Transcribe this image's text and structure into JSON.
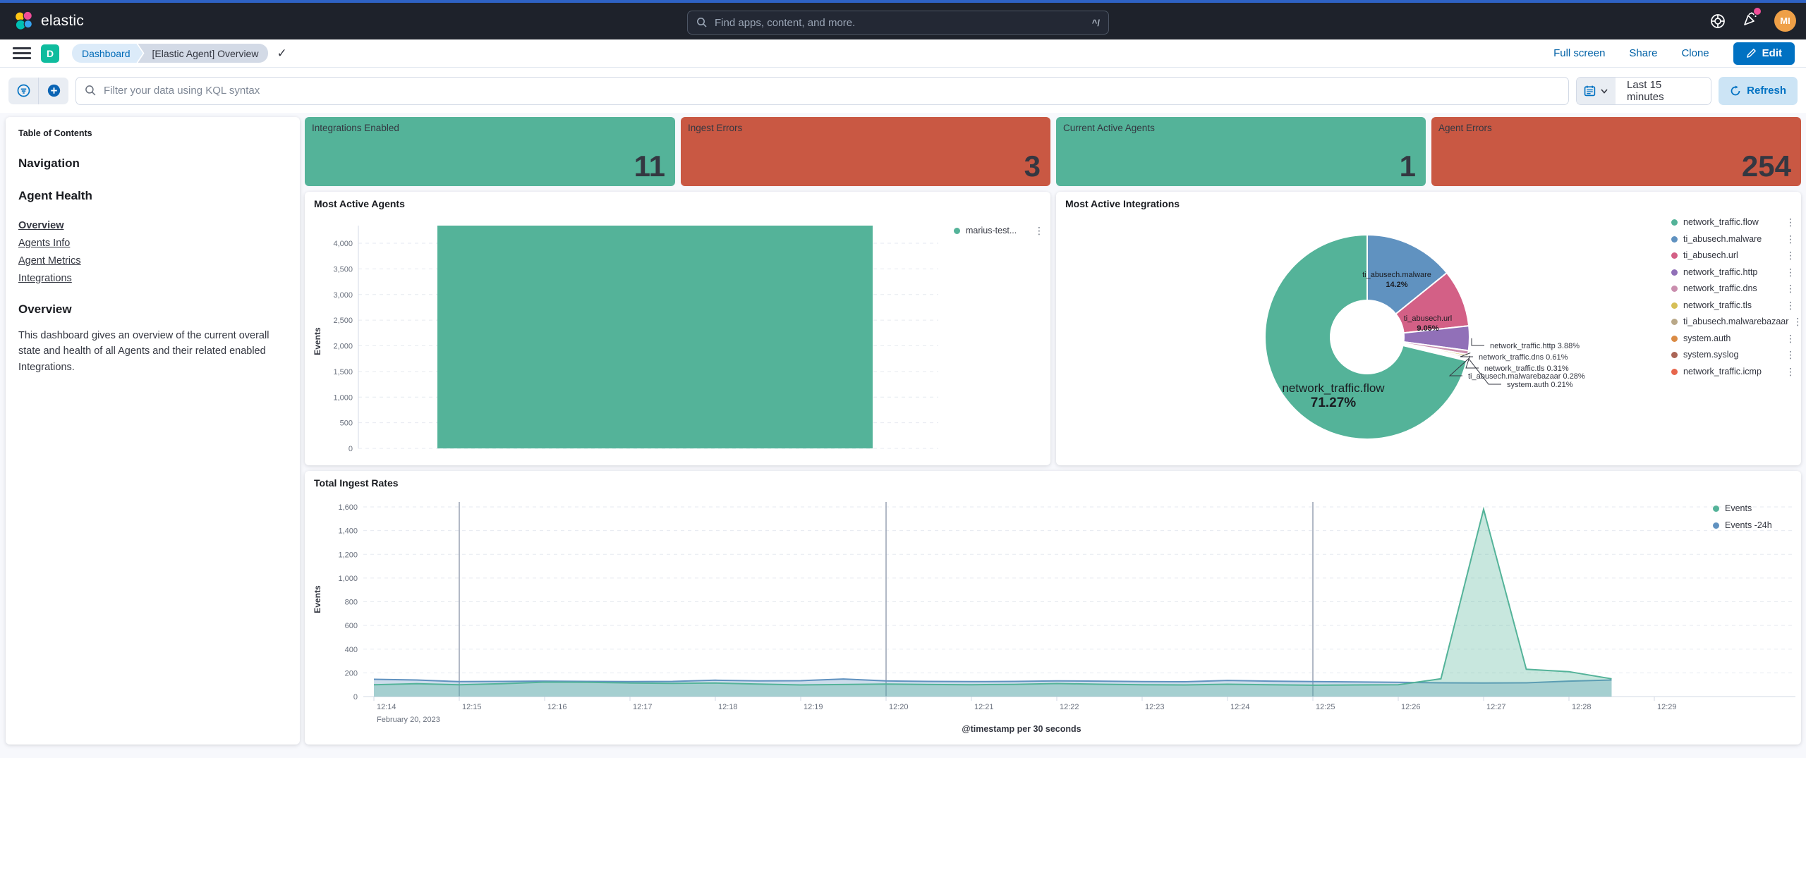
{
  "header": {
    "logo_text": "elastic",
    "search_placeholder": "Find apps, content, and more.",
    "search_shortcut": "^/",
    "avatar_initials": "MI"
  },
  "nav": {
    "breadcrumbs": [
      "Dashboard",
      "[Elastic Agent] Overview"
    ],
    "actions": {
      "full_screen": "Full screen",
      "share": "Share",
      "clone": "Clone"
    },
    "edit_label": "Edit"
  },
  "filter_bar": {
    "query_placeholder": "Filter your data using KQL syntax",
    "time_range": "Last 15 minutes",
    "refresh_label": "Refresh"
  },
  "toc": {
    "caption": "Table of Contents",
    "heading1": "Navigation",
    "heading2": "Agent Health",
    "links": [
      "Overview",
      "Agents Info",
      "Agent Metrics",
      "Integrations"
    ],
    "heading3": "Overview",
    "paragraph": "This dashboard gives an overview of the current overall state and health of all Agents and their related enabled Integrations."
  },
  "metrics": [
    {
      "label": "Integrations Enabled",
      "value": "11",
      "color": "#54B399"
    },
    {
      "label": "Ingest Errors",
      "value": "3",
      "color": "#C95843"
    },
    {
      "label": "Current Active Agents",
      "value": "1",
      "color": "#54B399"
    },
    {
      "label": "Agent Errors",
      "value": "254",
      "color": "#C95843"
    }
  ],
  "chart_data": [
    {
      "type": "bar",
      "title": "Most Active Agents",
      "ylabel": "Events",
      "categories": [
        "marius-test..."
      ],
      "values": [
        4296
      ],
      "ylim": [
        0,
        4296
      ],
      "yticks": [
        0,
        500,
        1000,
        1500,
        2000,
        2500,
        3000,
        3500,
        4000
      ],
      "ytick_labels": [
        "0",
        "500",
        "1,000",
        "1,500",
        "2,000",
        "2,500",
        "3,000",
        "3,500",
        "4,000"
      ],
      "grid": "dashed-horizontal",
      "color": "#54B399",
      "legend_position": "right",
      "legend": [
        {
          "name": "marius-test...",
          "color": "#54B399"
        }
      ]
    },
    {
      "type": "pie",
      "title": "Most Active Integrations",
      "donut": true,
      "slices": [
        {
          "label": "ti_abusech.malware",
          "value": 14.2,
          "pct_label": "14.2%",
          "color": "#6092C0"
        },
        {
          "label": "ti_abusech.url",
          "value": 9.05,
          "pct_label": "9.05%",
          "color": "#D36086"
        },
        {
          "label": "network_traffic.http",
          "value": 3.88,
          "pct_label": "3.88%",
          "color": "#9170B8"
        },
        {
          "label": "network_traffic.dns",
          "value": 0.61,
          "pct_label": "0.61%",
          "color": "#CA8EAE"
        },
        {
          "label": "network_traffic.tls",
          "value": 0.31,
          "pct_label": "0.31%",
          "color": "#D6BF57"
        },
        {
          "label": "ti_abusech.malwarebazaar",
          "value": 0.28,
          "pct_label": "0.28%",
          "color": "#B9A888"
        },
        {
          "label": "system.auth",
          "value": 0.21,
          "pct_label": "0.21%",
          "color": "#DA8B45"
        },
        {
          "label": "system.syslog",
          "value": 0.1,
          "pct_label": "",
          "color": "#AA6556"
        },
        {
          "label": "network_traffic.icmp",
          "value": 0.09,
          "pct_label": "",
          "color": "#E7664C"
        },
        {
          "label": "network_traffic.flow",
          "value": 71.27,
          "pct_label": "71.27%",
          "color": "#54B399"
        }
      ],
      "legend_position": "right",
      "legend": [
        {
          "name": "network_traffic.flow",
          "color": "#54B399"
        },
        {
          "name": "ti_abusech.malware",
          "color": "#6092C0"
        },
        {
          "name": "ti_abusech.url",
          "color": "#D36086"
        },
        {
          "name": "network_traffic.http",
          "color": "#9170B8"
        },
        {
          "name": "network_traffic.dns",
          "color": "#CA8EAE"
        },
        {
          "name": "network_traffic.tls",
          "color": "#D6BF57"
        },
        {
          "name": "ti_abusech.malwarebazaar",
          "color": "#B9A888"
        },
        {
          "name": "system.auth",
          "color": "#DA8B45"
        },
        {
          "name": "system.syslog",
          "color": "#AA6556"
        },
        {
          "name": "network_traffic.icmp",
          "color": "#E7664C"
        }
      ]
    },
    {
      "type": "area",
      "title": "Total Ingest Rates",
      "xlabel": "@timestamp per 30 seconds",
      "ylabel": "Events",
      "date_label": "February 20, 2023",
      "x_ticks": [
        "12:14",
        "12:15",
        "12:16",
        "12:17",
        "12:18",
        "12:19",
        "12:20",
        "12:21",
        "12:22",
        "12:23",
        "12:24",
        "12:25",
        "12:26",
        "12:27",
        "12:28",
        "12:29"
      ],
      "yticks": [
        0,
        200,
        400,
        600,
        800,
        1000,
        1200,
        1400,
        1600
      ],
      "ytick_labels": [
        "0",
        "200",
        "400",
        "600",
        "800",
        "1,000",
        "1,200",
        "1,400",
        "1,600"
      ],
      "ylim": [
        0,
        1600
      ],
      "grid": "dashed-horizontal",
      "annotation_lines": [
        "12:15",
        "12:20",
        "12:25"
      ],
      "interval_seconds": 30,
      "start_time": "12:14",
      "series": [
        {
          "name": "Events",
          "color": "#54B399",
          "values": [
            100,
            108,
            100,
            108,
            122,
            120,
            115,
            112,
            114,
            106,
            98,
            102,
            106,
            102,
            100,
            103,
            110,
            104,
            100,
            98,
            104,
            100,
            96,
            98,
            100,
            150,
            1580,
            230,
            210,
            150
          ]
        },
        {
          "name": "Events -24h",
          "color": "#6092C0",
          "values": [
            146,
            140,
            126,
            128,
            130,
            128,
            126,
            128,
            138,
            132,
            134,
            148,
            132,
            128,
            126,
            128,
            132,
            130,
            126,
            125,
            136,
            130,
            126,
            124,
            120,
            116,
            114,
            116,
            130,
            140
          ]
        }
      ],
      "legend_position": "top-right"
    }
  ]
}
